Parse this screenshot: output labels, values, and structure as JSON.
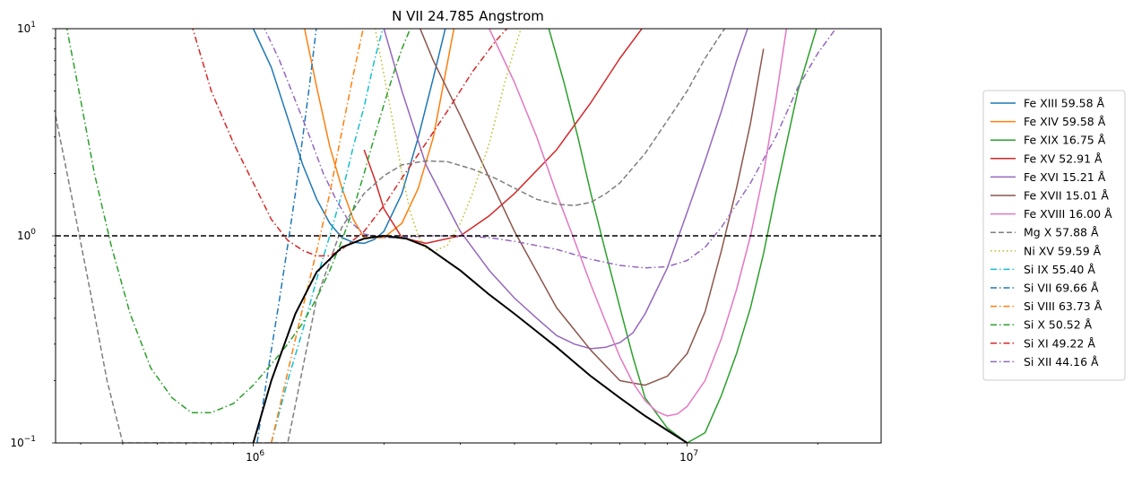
{
  "chart_data": {
    "type": "line",
    "title": "N VII 24.785 Angstrom",
    "xlabel": "",
    "ylabel": "",
    "xscale": "log",
    "yscale": "log",
    "xlim": [
      350000,
      28000000
    ],
    "ylim": [
      0.1,
      10
    ],
    "x_ticks": [
      {
        "value": 1000000,
        "label": "10^6"
      },
      {
        "value": 10000000,
        "label": "10^7"
      }
    ],
    "y_ticks": [
      {
        "value": 0.1,
        "label": "10^-1"
      },
      {
        "value": 1,
        "label": "10^0"
      },
      {
        "value": 10,
        "label": "10^1"
      }
    ],
    "reference_line": {
      "y": 1,
      "style": "dashed",
      "color": "#000000"
    },
    "legend_position": "right, outside plot",
    "envelope": {
      "color": "#000000",
      "x": [
        1000000,
        1100000,
        1250000,
        1400000,
        1600000,
        1800000,
        2000000,
        2250000,
        2500000,
        3000000,
        3500000,
        4000000,
        5000000,
        6000000,
        7000000,
        8000000,
        9000000,
        10000000
      ],
      "y": [
        0.1,
        0.2,
        0.42,
        0.67,
        0.88,
        0.97,
        1.0,
        0.97,
        0.89,
        0.68,
        0.52,
        0.42,
        0.29,
        0.21,
        0.165,
        0.135,
        0.115,
        0.1
      ]
    },
    "series": [
      {
        "name": "Fe XIII 59.58 Å",
        "color": "#1f77b4",
        "dash": "solid",
        "x": [
          1000000,
          1100000,
          1200000,
          1300000,
          1400000,
          1500000,
          1600000,
          1700000,
          1800000,
          1900000,
          2000000,
          2200000,
          2400000,
          2600000,
          2800000
        ],
        "y": [
          10,
          6.5,
          3.7,
          2.2,
          1.5,
          1.15,
          0.98,
          0.93,
          0.92,
          0.96,
          1.05,
          1.6,
          3.0,
          5.8,
          11
        ]
      },
      {
        "name": "Fe XIV 59.58 Å",
        "color": "#ff7f0e",
        "dash": "solid",
        "x": [
          1300000,
          1400000,
          1500000,
          1600000,
          1700000,
          1800000,
          2000000,
          2200000,
          2400000,
          2600000,
          2900000
        ],
        "y": [
          11,
          5.2,
          2.7,
          1.7,
          1.2,
          0.98,
          0.98,
          1.15,
          1.7,
          3.0,
          10
        ]
      },
      {
        "name": "Fe XIX 16.75 Å",
        "color": "#2ca02c",
        "dash": "solid",
        "x": [
          4800000,
          5200000,
          5600000,
          6000000,
          6500000,
          7000000,
          7500000,
          8000000,
          9000000,
          10000000,
          11000000,
          12000000,
          13000000,
          14000000,
          15000000,
          16000000,
          18000000,
          20000000
        ],
        "y": [
          10,
          5.5,
          3.0,
          1.6,
          0.82,
          0.45,
          0.26,
          0.165,
          0.118,
          0.1,
          0.112,
          0.17,
          0.27,
          0.45,
          0.82,
          1.6,
          5.0,
          10.5
        ]
      },
      {
        "name": "Fe XV 52.91 Å",
        "color": "#d62728",
        "dash": "solid",
        "x": [
          1800000,
          1900000,
          2000000,
          2200000,
          2500000,
          3000000,
          3500000,
          4000000,
          5000000,
          6000000,
          7000000,
          8000000,
          9000000
        ],
        "y": [
          2.6,
          1.9,
          1.35,
          0.98,
          0.92,
          1.0,
          1.25,
          1.6,
          2.6,
          4.4,
          7.2,
          10.5,
          12
        ]
      },
      {
        "name": "Fe XVI 15.21 Å",
        "color": "#9467bd",
        "dash": "solid",
        "x": [
          2000000,
          2200000,
          2500000,
          3000000,
          3500000,
          4000000,
          4500000,
          5000000,
          5500000,
          6000000,
          6500000,
          7000000,
          7500000,
          8000000,
          9000000,
          10000000,
          11000000,
          12000000,
          13000000,
          14000000
        ],
        "y": [
          10,
          5.0,
          2.2,
          1.05,
          0.68,
          0.5,
          0.4,
          0.33,
          0.3,
          0.285,
          0.29,
          0.305,
          0.34,
          0.42,
          0.7,
          1.3,
          2.3,
          4.0,
          7.0,
          11
        ]
      },
      {
        "name": "Fe XVII 15.01 Å",
        "color": "#8c564b",
        "dash": "solid",
        "x": [
          2400000,
          2600000,
          3000000,
          3500000,
          4000000,
          5000000,
          6000000,
          7000000,
          8000000,
          9000000,
          10000000,
          11000000,
          12000000,
          13000000,
          14000000,
          15000000
        ],
        "y": [
          10.5,
          7.0,
          3.8,
          1.9,
          1.05,
          0.45,
          0.28,
          0.2,
          0.19,
          0.21,
          0.27,
          0.43,
          0.85,
          1.7,
          3.5,
          8.0
        ]
      },
      {
        "name": "Fe XVIII 16.00 Å",
        "color": "#e377c2",
        "dash": "solid",
        "x": [
          3500000,
          4000000,
          4500000,
          5000000,
          5500000,
          6000000,
          6500000,
          7000000,
          7500000,
          8000000,
          8500000,
          9000000,
          9500000,
          10000000,
          11000000,
          12000000,
          13000000,
          14000000,
          15000000,
          16000000,
          17000000
        ],
        "y": [
          10,
          5.5,
          3.0,
          1.6,
          0.95,
          0.58,
          0.38,
          0.26,
          0.195,
          0.16,
          0.142,
          0.135,
          0.138,
          0.15,
          0.2,
          0.32,
          0.55,
          1.0,
          2.0,
          4.5,
          10.5
        ]
      },
      {
        "name": "Mg X 57.88 Å",
        "color": "#7f7f7f",
        "dash": "dashed",
        "x": [
          350000,
          380000,
          420000,
          460000,
          500000,
          1200000,
          1400000,
          1600000,
          1800000,
          2000000,
          2200000,
          2500000,
          2800000,
          3200000,
          3600000,
          4000000,
          4500000,
          5000000,
          5500000,
          6000000,
          6500000,
          7000000,
          8000000,
          9000000,
          10000000,
          11000000,
          12000000,
          13000000
        ],
        "y": [
          3.8,
          1.6,
          0.55,
          0.2,
          0.1,
          0.1,
          0.5,
          1.1,
          1.6,
          1.95,
          2.2,
          2.3,
          2.28,
          2.1,
          1.9,
          1.7,
          1.5,
          1.42,
          1.4,
          1.45,
          1.6,
          1.8,
          2.5,
          3.6,
          5.0,
          7.2,
          9.5,
          12
        ]
      },
      {
        "name": "Ni XV 59.59 Å",
        "color": "#bcbd22",
        "dash": "dotted",
        "x": [
          1900000,
          2000000,
          2100000,
          2200000,
          2300000,
          2400000,
          2500000,
          2600000,
          2800000,
          3000000,
          3200000,
          3500000,
          3800000,
          4000000,
          4200000
        ],
        "y": [
          10.5,
          6.0,
          3.5,
          2.0,
          1.3,
          1.0,
          0.87,
          0.84,
          0.9,
          1.15,
          1.6,
          2.8,
          5.5,
          8.0,
          11
        ]
      },
      {
        "name": "Si IX 55.40 Å",
        "color": "#17becf",
        "dash": "dashdot",
        "x": [
          1100000,
          1200000,
          1300000,
          1400000,
          1500000,
          1600000,
          1700000,
          1800000,
          1900000,
          2000000
        ],
        "y": [
          0.1,
          0.2,
          0.35,
          0.62,
          1.0,
          1.6,
          2.7,
          4.2,
          7.0,
          10.5
        ]
      },
      {
        "name": "Si VII 69.66 Å",
        "color": "#1f77b4",
        "dash": "dashdot",
        "x": [
          1020000,
          1080000,
          1150000,
          1200000,
          1250000,
          1300000,
          1350000,
          1400000
        ],
        "y": [
          0.1,
          0.22,
          0.5,
          0.9,
          1.6,
          3.0,
          5.5,
          10.5
        ]
      },
      {
        "name": "Si VIII 63.73 Å",
        "color": "#ff7f0e",
        "dash": "dashdot",
        "x": [
          1100000,
          1200000,
          1300000,
          1400000,
          1500000,
          1600000,
          1700000,
          1800000
        ],
        "y": [
          0.1,
          0.22,
          0.45,
          0.85,
          1.6,
          3.2,
          6.0,
          10.5
        ]
      },
      {
        "name": "Si X 50.52 Å",
        "color": "#2ca02c",
        "dash": "dashdot",
        "x": [
          370000,
          400000,
          430000,
          470000,
          520000,
          580000,
          650000,
          720000,
          800000,
          900000,
          1000000,
          1100000,
          1200000,
          1300000,
          1400000,
          1500000,
          1600000,
          1700000,
          1800000,
          1900000,
          2000000,
          2100000,
          2200000,
          2300000,
          2400000
        ],
        "y": [
          10.5,
          4.5,
          2.0,
          0.9,
          0.42,
          0.23,
          0.165,
          0.14,
          0.14,
          0.155,
          0.19,
          0.24,
          0.3,
          0.38,
          0.5,
          0.68,
          0.95,
          1.35,
          2.0,
          3.0,
          4.3,
          6.0,
          8.0,
          10.0,
          11.5
        ]
      },
      {
        "name": "Si XI 49.22 Å",
        "color": "#d62728",
        "dash": "dashdot",
        "x": [
          720000,
          800000,
          900000,
          1000000,
          1100000,
          1200000,
          1300000,
          1400000,
          1500000,
          1600000,
          1800000,
          2000000,
          2200000,
          2500000,
          2800000,
          3200000,
          3600000,
          4000000
        ],
        "y": [
          10.5,
          5.0,
          2.8,
          1.8,
          1.2,
          0.95,
          0.85,
          0.8,
          0.8,
          0.86,
          1.05,
          1.4,
          1.9,
          2.8,
          4.0,
          6.2,
          8.6,
          11
        ]
      },
      {
        "name": "Si XII 44.16 Å",
        "color": "#9467bd",
        "dash": "dashdot",
        "x": [
          1050000,
          1150000,
          1250000,
          1350000,
          1450000,
          1550000,
          1650000,
          1800000,
          2000000,
          2200000,
          2500000,
          3000000,
          3500000,
          4000000,
          5000000,
          6000000,
          7000000,
          8000000,
          9000000,
          10000000,
          11000000,
          12000000,
          14000000,
          16000000,
          18000000,
          20000000,
          22000000,
          24000000
        ],
        "y": [
          10.5,
          7.0,
          4.5,
          3.0,
          2.0,
          1.5,
          1.2,
          1.02,
          0.98,
          0.98,
          1.0,
          1.0,
          0.98,
          0.94,
          0.86,
          0.77,
          0.72,
          0.7,
          0.71,
          0.76,
          0.88,
          1.1,
          1.8,
          3.0,
          5.2,
          7.6,
          10.0,
          12
        ]
      }
    ]
  }
}
